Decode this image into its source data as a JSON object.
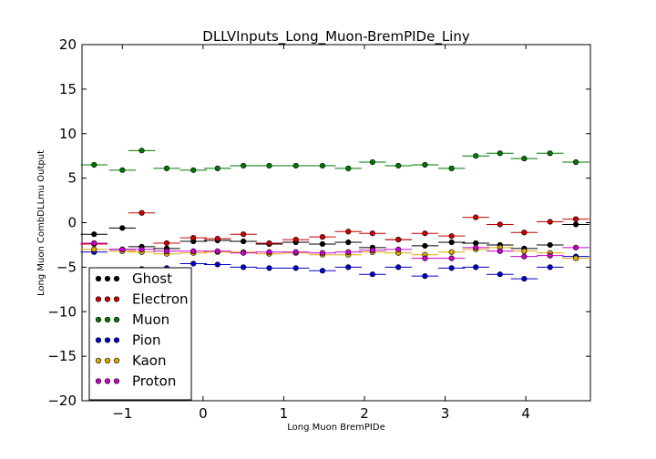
{
  "chart_data": {
    "type": "scatter",
    "title": "DLLVInputs_Long_Muon-BremPIDe_Liny",
    "xlabel": "Long Muon BremPIDe",
    "ylabel": "Long Muon CombDLLmu Output",
    "xlim": [
      -1.5,
      4.8
    ],
    "ylim": [
      -20,
      20
    ],
    "xticks": [
      "−1",
      "0",
      "1",
      "2",
      "3",
      "4"
    ],
    "xtick_values": [
      -1,
      0,
      1,
      2,
      3,
      4
    ],
    "yticks": [
      "−20",
      "−15",
      "−10",
      "−5",
      "0",
      "5",
      "10",
      "15",
      "20"
    ],
    "ytick_values": [
      -20,
      -15,
      -10,
      -5,
      0,
      5,
      10,
      15,
      20
    ],
    "bin_width": 0.3333,
    "x": [
      -1.35,
      -1.0,
      -0.76,
      -0.45,
      -0.12,
      0.18,
      0.5,
      0.82,
      1.15,
      1.48,
      1.8,
      2.1,
      2.42,
      2.75,
      3.08,
      3.38,
      3.68,
      3.98,
      4.3,
      4.62
    ],
    "grid": false,
    "legend_position": "lower-left",
    "series": [
      {
        "name": "Ghost",
        "color": "#000000",
        "values": [
          -1.3,
          -0.6,
          -2.7,
          -2.9,
          -2.1,
          -2.0,
          -2.1,
          -2.4,
          -2.2,
          -2.4,
          -2.2,
          -2.8,
          -1.9,
          -2.6,
          -2.2,
          -2.3,
          -2.5,
          -2.9,
          -2.5,
          -0.2
        ]
      },
      {
        "name": "Electron",
        "color": "#cc0000",
        "values": [
          -2.4,
          -3.0,
          1.1,
          -2.3,
          -1.7,
          -1.8,
          -1.3,
          -2.3,
          -1.9,
          -1.6,
          -1.0,
          -1.2,
          -1.9,
          -1.2,
          -1.5,
          0.6,
          -0.2,
          -1.1,
          0.1,
          0.4
        ]
      },
      {
        "name": "Muon",
        "color": "#007700",
        "values": [
          6.5,
          5.9,
          8.1,
          6.1,
          5.9,
          6.1,
          6.4,
          6.4,
          6.4,
          6.4,
          6.1,
          6.8,
          6.4,
          6.5,
          6.1,
          7.5,
          7.8,
          7.2,
          7.8,
          6.8
        ]
      },
      {
        "name": "Pion",
        "color": "#0000cc",
        "values": [
          -3.3,
          -3.0,
          -5.2,
          -5.1,
          -4.6,
          -4.7,
          -5.0,
          -5.1,
          -5.1,
          -5.4,
          -5.0,
          -5.8,
          -5.0,
          -6.0,
          -5.1,
          -5.0,
          -5.8,
          -6.3,
          -5.0,
          -3.8
        ]
      },
      {
        "name": "Kaon",
        "color": "#ddaa00",
        "values": [
          -3.0,
          -3.2,
          -3.3,
          -3.5,
          -3.4,
          -3.3,
          -3.3,
          -3.5,
          -3.4,
          -3.6,
          -3.6,
          -3.3,
          -3.4,
          -3.6,
          -3.3,
          -3.0,
          -2.8,
          -3.2,
          -3.4,
          -4.0
        ]
      },
      {
        "name": "Proton",
        "color": "#cc00cc",
        "values": [
          -2.3,
          -3.0,
          -3.0,
          -3.2,
          -3.2,
          -3.2,
          -3.4,
          -3.3,
          -3.3,
          -3.4,
          -3.3,
          -3.1,
          -3.0,
          -4.0,
          -4.0,
          -2.8,
          -3.2,
          -3.8,
          -3.7,
          -2.8
        ]
      }
    ]
  }
}
